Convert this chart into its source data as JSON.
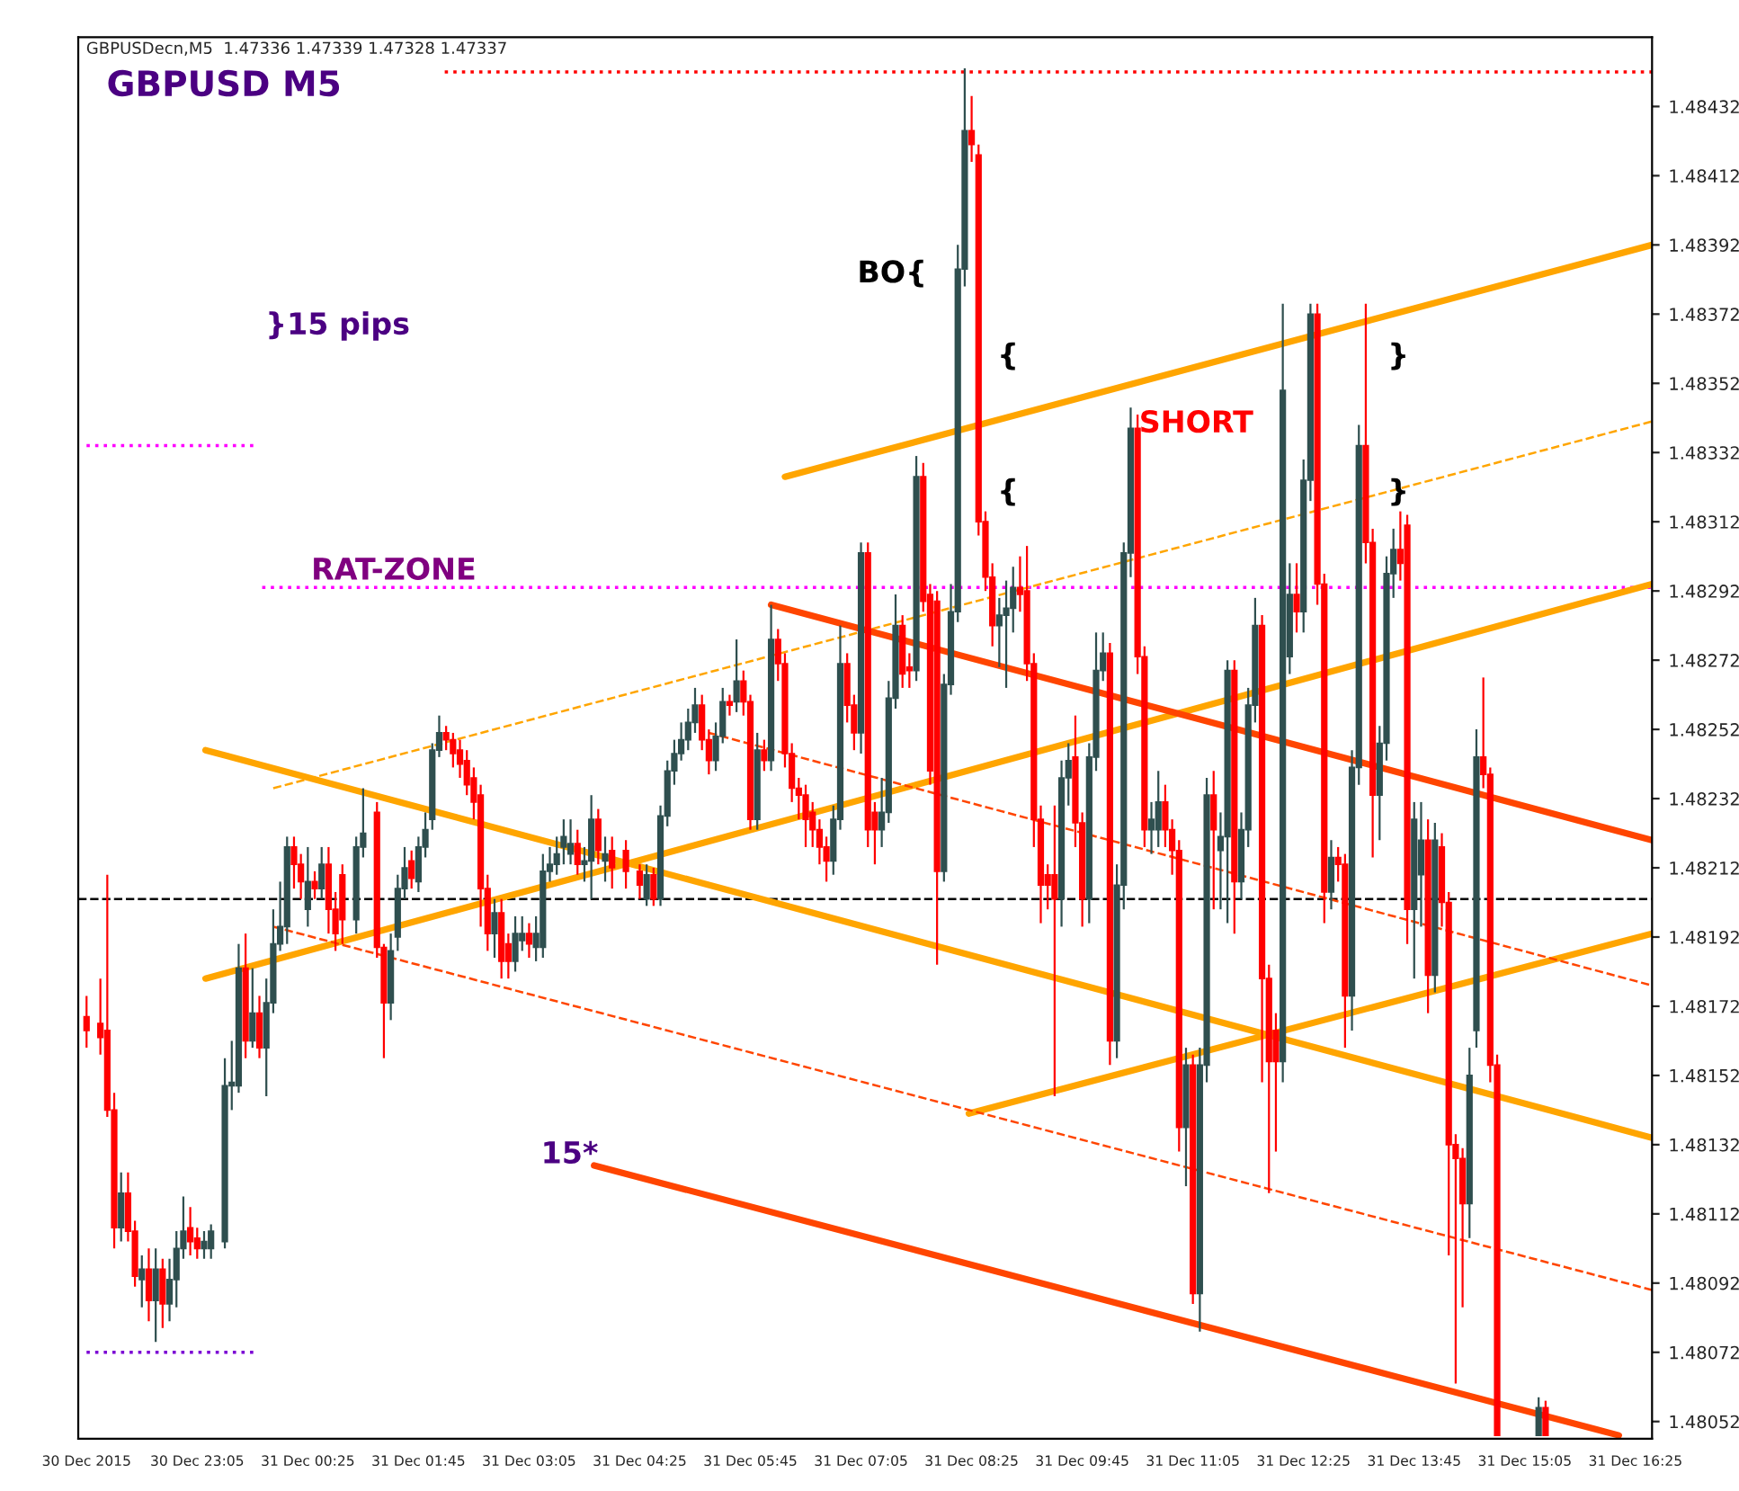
{
  "chart_data": {
    "type": "candlestick",
    "title": "GBPUSDecn,M5  1.47336 1.47339 1.47328 1.47337",
    "subtitle": "GBPUSD M5",
    "xlim": [
      "2015-12-30T21:39",
      "2015-12-31T16:37"
    ],
    "xticks": [
      {
        "value": "2015-12-30T21:45",
        "label": "30 Dec 2015"
      },
      {
        "value": "2015-12-30T23:05",
        "label": "30 Dec 23:05"
      },
      {
        "value": "2015-12-31T00:25",
        "label": "31 Dec 00:25"
      },
      {
        "value": "2015-12-31T01:45",
        "label": "31 Dec 01:45"
      },
      {
        "value": "2015-12-31T03:05",
        "label": "31 Dec 03:05"
      },
      {
        "value": "2015-12-31T04:25",
        "label": "31 Dec 04:25"
      },
      {
        "value": "2015-12-31T05:45",
        "label": "31 Dec 05:45"
      },
      {
        "value": "2015-12-31T07:05",
        "label": "31 Dec 07:05"
      },
      {
        "value": "2015-12-31T08:25",
        "label": "31 Dec 08:25"
      },
      {
        "value": "2015-12-31T09:45",
        "label": "31 Dec 09:45"
      },
      {
        "value": "2015-12-31T11:05",
        "label": "31 Dec 11:05"
      },
      {
        "value": "2015-12-31T12:25",
        "label": "31 Dec 12:25"
      },
      {
        "value": "2015-12-31T13:45",
        "label": "31 Dec 13:45"
      },
      {
        "value": "2015-12-31T15:05",
        "label": "31 Dec 15:05"
      },
      {
        "value": "2015-12-31T16:25",
        "label": "31 Dec 16:25"
      }
    ],
    "ylim": [
      1.48047,
      1.48452
    ],
    "yticks": [
      1.48052,
      1.48072,
      1.48092,
      1.48112,
      1.48132,
      1.48152,
      1.48172,
      1.48192,
      1.48212,
      1.48232,
      1.48252,
      1.48272,
      1.48292,
      1.48312,
      1.48332,
      1.48352,
      1.48372,
      1.48392,
      1.48412,
      1.48432
    ],
    "grid": false,
    "legend": false,
    "ref_lines": [
      {
        "axis": "y",
        "value": 1.48203,
        "color": "#000000",
        "line_style": "dashed"
      }
    ],
    "annotations": [
      "}15 pips",
      "RAT-ZONE",
      "BO{",
      "{",
      "{",
      "SHORT",
      "}",
      "}",
      "15*"
    ],
    "series": [
      {
        "type": "line",
        "color": "#ff0000",
        "line_style": "dotted",
        "x": [
          "2015-12-31T02:04",
          "2015-12-31T16:37"
        ],
        "values": [
          1.48442,
          1.48442
        ]
      },
      {
        "type": "line",
        "color": "#ff00ff",
        "line_style": "dotted",
        "x": [
          "2015-12-30T21:45",
          "2015-12-30T23:48"
        ],
        "values": [
          1.48334,
          1.48334
        ]
      },
      {
        "type": "line",
        "color": "#ff00ff",
        "line_style": "dotted",
        "x": [
          "2015-12-30T23:52",
          "2015-12-31T16:37"
        ],
        "values": [
          1.48293,
          1.48293
        ]
      },
      {
        "type": "line",
        "color": "#7b00d4",
        "line_style": "dotted",
        "x": [
          "2015-12-30T21:45",
          "2015-12-30T23:48"
        ],
        "values": [
          1.48072,
          1.48072
        ]
      },
      {
        "type": "line",
        "color": "#ffa500",
        "line_style": "solid",
        "x": [
          "2015-12-31T06:10",
          "2015-12-31T16:37"
        ],
        "values": [
          1.48325,
          1.48392
        ]
      },
      {
        "type": "line",
        "color": "#ffa500",
        "line_style": "solid",
        "x": [
          "2015-12-30T23:11",
          "2015-12-31T16:37"
        ],
        "values": [
          1.4818,
          1.48294
        ]
      },
      {
        "type": "line",
        "color": "#ffa500",
        "line_style": "solid",
        "x": [
          "2015-12-30T23:11",
          "2015-12-31T16:37"
        ],
        "values": [
          1.48246,
          1.48134
        ]
      },
      {
        "type": "line",
        "color": "#ffa500",
        "line_style": "solid",
        "x": [
          "2015-12-31T08:23",
          "2015-12-31T16:37"
        ],
        "values": [
          1.48141,
          1.48193
        ]
      },
      {
        "type": "line",
        "color": "#ffa500",
        "line_style": "dashed",
        "x": [
          "2015-12-31T00:00",
          "2015-12-31T16:37"
        ],
        "values": [
          1.48235,
          1.48341
        ]
      },
      {
        "type": "line",
        "color": "#ff4500",
        "line_style": "solid",
        "x": [
          "2015-12-31T06:00",
          "2015-12-31T16:37"
        ],
        "values": [
          1.48288,
          1.4822
        ]
      },
      {
        "type": "line",
        "color": "#ff4500",
        "line_style": "solid",
        "x": [
          "2015-12-31T03:52",
          "2015-12-31T16:13"
        ],
        "values": [
          1.48126,
          1.48048
        ]
      },
      {
        "type": "line",
        "color": "#ff4500",
        "line_style": "dashed",
        "x": [
          "2015-12-31T00:00",
          "2015-12-31T16:37"
        ],
        "values": [
          1.48195,
          1.4809
        ]
      },
      {
        "type": "line",
        "color": "#ff4500",
        "line_style": "dashed",
        "x": [
          "2015-12-31T05:15",
          "2015-12-31T16:37"
        ],
        "values": [
          1.48251,
          1.48178
        ]
      },
      {
        "color": "#2f4f4f",
        "x": [
          "2015-12-30T22:10",
          "2015-12-30T22:25",
          "2015-12-30T22:35",
          "2015-12-30T22:45",
          "2015-12-30T22:50",
          "2015-12-30T22:55",
          "2015-12-30T23:10",
          "2015-12-30T23:15",
          "2015-12-30T23:25",
          "2015-12-30T23:30",
          "2015-12-30T23:35",
          "2015-12-30T23:45",
          "2015-12-30T23:55",
          "2015-12-31T00:00",
          "2015-12-31T00:05",
          "2015-12-31T00:10",
          "2015-12-31T00:25",
          "2015-12-31T00:35",
          "2015-12-31T01:00",
          "2015-12-31T01:05",
          "2015-12-31T01:25",
          "2015-12-31T01:30",
          "2015-12-31T01:35",
          "2015-12-31T01:45",
          "2015-12-31T01:50",
          "2015-12-31T01:55",
          "2015-12-31T02:00",
          "2015-12-31T02:40",
          "2015-12-31T02:55",
          "2015-12-31T03:00",
          "2015-12-31T03:10",
          "2015-12-31T03:15",
          "2015-12-31T03:20",
          "2015-12-31T03:25",
          "2015-12-31T03:30",
          "2015-12-31T03:35",
          "2015-12-31T03:45",
          "2015-12-31T03:50",
          "2015-12-31T04:00",
          "2015-12-31T04:30",
          "2015-12-31T04:40",
          "2015-12-31T04:45",
          "2015-12-31T04:50",
          "2015-12-31T04:55",
          "2015-12-31T05:00",
          "2015-12-31T05:05",
          "2015-12-31T05:20",
          "2015-12-31T05:25",
          "2015-12-31T05:35",
          "2015-12-31T05:50",
          "2015-12-31T06:00",
          "2015-12-31T06:45",
          "2015-12-31T06:50",
          "2015-12-31T07:05",
          "2015-12-31T07:20",
          "2015-12-31T07:25",
          "2015-12-31T07:30",
          "2015-12-31T07:45",
          "2015-12-31T08:05",
          "2015-12-31T08:10",
          "2015-12-31T08:15",
          "2015-12-31T08:20",
          "2015-12-31T08:45",
          "2015-12-31T08:50",
          "2015-12-31T08:55",
          "2015-12-31T09:30",
          "2015-12-31T09:35",
          "2015-12-31T09:50",
          "2015-12-31T09:55",
          "2015-12-31T10:00",
          "2015-12-31T10:10",
          "2015-12-31T10:15",
          "2015-12-31T10:20",
          "2015-12-31T10:35",
          "2015-12-31T10:40",
          "2015-12-31T11:00",
          "2015-12-31T11:10",
          "2015-12-31T11:15",
          "2015-12-31T11:25",
          "2015-12-31T11:30",
          "2015-12-31T11:40",
          "2015-12-31T11:45",
          "2015-12-31T11:50",
          "2015-12-31T12:10",
          "2015-12-31T12:15",
          "2015-12-31T12:25",
          "2015-12-31T12:30",
          "2015-12-31T12:45",
          "2015-12-31T13:00",
          "2015-12-31T13:05",
          "2015-12-31T13:20",
          "2015-12-31T13:25",
          "2015-12-31T13:30",
          "2015-12-31T13:45",
          "2015-12-31T13:50",
          "2015-12-31T14:00",
          "2015-12-31T14:25",
          "2015-12-31T14:30",
          "2015-12-31T15:15"
        ],
        "ohlc": [
          [
            1.48108,
            1.48124,
            1.48104,
            1.48118
          ],
          [
            1.48093,
            1.481,
            1.48085,
            1.48096
          ],
          [
            1.48087,
            1.48102,
            1.48075,
            1.48096
          ],
          [
            1.48086,
            1.48099,
            1.48081,
            1.48093
          ],
          [
            1.48093,
            1.48107,
            1.48085,
            1.48102
          ],
          [
            1.48102,
            1.48117,
            1.48099,
            1.48107
          ],
          [
            1.48102,
            1.48107,
            1.48099,
            1.48104
          ],
          [
            1.48102,
            1.48109,
            1.48099,
            1.48107
          ],
          [
            1.48104,
            1.48157,
            1.48102,
            1.48149
          ],
          [
            1.48149,
            1.48162,
            1.48142,
            1.4815
          ],
          [
            1.48149,
            1.4819,
            1.48147,
            1.48183
          ],
          [
            1.48162,
            1.48183,
            1.4816,
            1.4817
          ],
          [
            1.4816,
            1.4818,
            1.48146,
            1.48173
          ],
          [
            1.48173,
            1.482,
            1.4817,
            1.4819
          ],
          [
            1.4819,
            1.48208,
            1.48188,
            1.48195
          ],
          [
            1.48195,
            1.48221,
            1.4819,
            1.48218
          ],
          [
            1.482,
            1.48218,
            1.48195,
            1.48208
          ],
          [
            1.48206,
            1.48218,
            1.48203,
            1.48213
          ],
          [
            1.48197,
            1.48221,
            1.48193,
            1.48218
          ],
          [
            1.48218,
            1.48235,
            1.48215,
            1.48222
          ],
          [
            1.48173,
            1.48193,
            1.48168,
            1.48188
          ],
          [
            1.48192,
            1.4821,
            1.48188,
            1.48206
          ],
          [
            1.48206,
            1.48218,
            1.48203,
            1.48212
          ],
          [
            1.48208,
            1.48221,
            1.48205,
            1.48218
          ],
          [
            1.48218,
            1.48228,
            1.48215,
            1.48223
          ],
          [
            1.48226,
            1.48248,
            1.48223,
            1.48246
          ],
          [
            1.48246,
            1.48256,
            1.48244,
            1.48251
          ],
          [
            1.48193,
            1.48203,
            1.48186,
            1.48199
          ],
          [
            1.48185,
            1.48198,
            1.48182,
            1.48193
          ],
          [
            1.48191,
            1.48198,
            1.48188,
            1.48193
          ],
          [
            1.48189,
            1.48198,
            1.48185,
            1.48193
          ],
          [
            1.48189,
            1.48216,
            1.48186,
            1.48211
          ],
          [
            1.48211,
            1.48218,
            1.48208,
            1.48213
          ],
          [
            1.48213,
            1.48221,
            1.4821,
            1.48216
          ],
          [
            1.48218,
            1.48226,
            1.48213,
            1.48221
          ],
          [
            1.48216,
            1.48226,
            1.48213,
            1.48219
          ],
          [
            1.48213,
            1.48218,
            1.48208,
            1.48214
          ],
          [
            1.48214,
            1.48233,
            1.48203,
            1.48226
          ],
          [
            1.48214,
            1.48221,
            1.48208,
            1.48216
          ],
          [
            1.48203,
            1.48213,
            1.48201,
            1.4821
          ],
          [
            1.48203,
            1.4823,
            1.48201,
            1.48227
          ],
          [
            1.48227,
            1.48243,
            1.48224,
            1.4824
          ],
          [
            1.4824,
            1.48249,
            1.48236,
            1.48245
          ],
          [
            1.48245,
            1.48254,
            1.48243,
            1.48249
          ],
          [
            1.48249,
            1.48258,
            1.48246,
            1.48254
          ],
          [
            1.48254,
            1.48264,
            1.48251,
            1.48259
          ],
          [
            1.48243,
            1.48254,
            1.4824,
            1.4825
          ],
          [
            1.4825,
            1.48264,
            1.48248,
            1.4826
          ],
          [
            1.4826,
            1.48278,
            1.48257,
            1.48266
          ],
          [
            1.48226,
            1.48251,
            1.48223,
            1.48246
          ],
          [
            1.48243,
            1.48288,
            1.4824,
            1.48278
          ],
          [
            1.48214,
            1.4823,
            1.4821,
            1.48226
          ],
          [
            1.48226,
            1.48282,
            1.48223,
            1.48271
          ],
          [
            1.48251,
            1.48306,
            1.48245,
            1.48303
          ],
          [
            1.48223,
            1.48238,
            1.48218,
            1.48228
          ],
          [
            1.48228,
            1.48266,
            1.48225,
            1.48261
          ],
          [
            1.48261,
            1.48291,
            1.48258,
            1.48282
          ],
          [
            1.48269,
            1.48331,
            1.48266,
            1.48325
          ],
          [
            1.48211,
            1.48268,
            1.48208,
            1.48265
          ],
          [
            1.48265,
            1.48294,
            1.48262,
            1.48286
          ],
          [
            1.48286,
            1.48392,
            1.48283,
            1.48385
          ],
          [
            1.48385,
            1.48443,
            1.4838,
            1.48425
          ],
          [
            1.48282,
            1.4829,
            1.4827,
            1.48285
          ],
          [
            1.48285,
            1.48295,
            1.48264,
            1.48287
          ],
          [
            1.48287,
            1.48299,
            1.4828,
            1.48293
          ],
          [
            1.48203,
            1.48243,
            1.48195,
            1.48238
          ],
          [
            1.48238,
            1.48248,
            1.4823,
            1.48243
          ],
          [
            1.48203,
            1.48248,
            1.48196,
            1.48244
          ],
          [
            1.48244,
            1.4828,
            1.4824,
            1.48269
          ],
          [
            1.48269,
            1.4828,
            1.48266,
            1.48274
          ],
          [
            1.48162,
            1.48213,
            1.48157,
            1.48207
          ],
          [
            1.48207,
            1.48306,
            1.482,
            1.48303
          ],
          [
            1.48303,
            1.48345,
            1.48296,
            1.48339
          ],
          [
            1.48223,
            1.48231,
            1.48216,
            1.48226
          ],
          [
            1.48223,
            1.4824,
            1.48218,
            1.48231
          ],
          [
            1.48137,
            1.4816,
            1.4812,
            1.48155
          ],
          [
            1.48089,
            1.4816,
            1.48078,
            1.48155
          ],
          [
            1.48155,
            1.48238,
            1.4815,
            1.48233
          ],
          [
            1.48217,
            1.48228,
            1.482,
            1.48221
          ],
          [
            1.48221,
            1.48272,
            1.48196,
            1.48269
          ],
          [
            1.48208,
            1.48228,
            1.48203,
            1.48223
          ],
          [
            1.48223,
            1.48264,
            1.48218,
            1.48259
          ],
          [
            1.48259,
            1.4829,
            1.48254,
            1.48282
          ],
          [
            1.48156,
            1.48375,
            1.4815,
            1.4835
          ],
          [
            1.48273,
            1.483,
            1.48268,
            1.48291
          ],
          [
            1.48286,
            1.4833,
            1.4828,
            1.48324
          ],
          [
            1.48324,
            1.48375,
            1.48318,
            1.48372
          ],
          [
            1.48205,
            1.4822,
            1.482,
            1.48215
          ],
          [
            1.48175,
            1.48246,
            1.48165,
            1.48241
          ],
          [
            1.48241,
            1.4834,
            1.48236,
            1.48334
          ],
          [
            1.48233,
            1.48253,
            1.4822,
            1.48248
          ],
          [
            1.48248,
            1.48302,
            1.48243,
            1.48297
          ],
          [
            1.48297,
            1.4831,
            1.4829,
            1.48304
          ],
          [
            1.482,
            1.48231,
            1.4818,
            1.48226
          ],
          [
            1.4821,
            1.48231,
            1.48195,
            1.4822
          ],
          [
            1.48181,
            1.48225,
            1.48176,
            1.4822
          ],
          [
            1.48115,
            1.4816,
            1.48105,
            1.48152
          ],
          [
            1.48165,
            1.48252,
            1.4816,
            1.48244
          ],
          [
            1.48048,
            1.48059,
            1.48048,
            1.48056
          ]
        ]
      },
      {
        "color": "#ff0000",
        "x": [
          "2015-12-30T21:45",
          "2015-12-30T21:55",
          "2015-12-30T22:00",
          "2015-12-30T22:05",
          "2015-12-30T22:15",
          "2015-12-30T22:20",
          "2015-12-30T22:30",
          "2015-12-30T22:40",
          "2015-12-30T23:00",
          "2015-12-30T23:05",
          "2015-12-30T23:40",
          "2015-12-30T23:50",
          "2015-12-31T00:15",
          "2015-12-31T00:20",
          "2015-12-31T00:30",
          "2015-12-31T00:40",
          "2015-12-31T00:45",
          "2015-12-31T00:50",
          "2015-12-31T01:15",
          "2015-12-31T01:20",
          "2015-12-31T01:40",
          "2015-12-31T02:05",
          "2015-12-31T02:10",
          "2015-12-31T02:15",
          "2015-12-31T02:20",
          "2015-12-31T02:25",
          "2015-12-31T02:30",
          "2015-12-31T02:35",
          "2015-12-31T02:45",
          "2015-12-31T02:50",
          "2015-12-31T03:05",
          "2015-12-31T03:40",
          "2015-12-31T03:55",
          "2015-12-31T04:05",
          "2015-12-31T04:15",
          "2015-12-31T04:25",
          "2015-12-31T04:35",
          "2015-12-31T05:10",
          "2015-12-31T05:15",
          "2015-12-31T05:30",
          "2015-12-31T05:40",
          "2015-12-31T05:45",
          "2015-12-31T05:55",
          "2015-12-31T06:05",
          "2015-12-31T06:10",
          "2015-12-31T06:15",
          "2015-12-31T06:20",
          "2015-12-31T06:25",
          "2015-12-31T06:30",
          "2015-12-31T06:35",
          "2015-12-31T06:40",
          "2015-12-31T06:55",
          "2015-12-31T07:00",
          "2015-12-31T07:10",
          "2015-12-31T07:15",
          "2015-12-31T07:35",
          "2015-12-31T07:40",
          "2015-12-31T07:50",
          "2015-12-31T07:55",
          "2015-12-31T08:00",
          "2015-12-31T08:25",
          "2015-12-31T08:30",
          "2015-12-31T08:35",
          "2015-12-31T08:40",
          "2015-12-31T09:00",
          "2015-12-31T09:05",
          "2015-12-31T09:10",
          "2015-12-31T09:15",
          "2015-12-31T09:20",
          "2015-12-31T09:25",
          "2015-12-31T09:40",
          "2015-12-31T09:45",
          "2015-12-31T10:05",
          "2015-12-31T10:25",
          "2015-12-31T10:30",
          "2015-12-31T10:45",
          "2015-12-31T10:50",
          "2015-12-31T10:55",
          "2015-12-31T11:05",
          "2015-12-31T11:20",
          "2015-12-31T11:35",
          "2015-12-31T11:55",
          "2015-12-31T12:00",
          "2015-12-31T12:05",
          "2015-12-31T12:20",
          "2015-12-31T12:35",
          "2015-12-31T12:40",
          "2015-12-31T12:50",
          "2015-12-31T12:55",
          "2015-12-31T13:10",
          "2015-12-31T13:15",
          "2015-12-31T13:35",
          "2015-12-31T13:40",
          "2015-12-31T13:55",
          "2015-12-31T14:05",
          "2015-12-31T14:10",
          "2015-12-31T14:15",
          "2015-12-31T14:20",
          "2015-12-31T14:35",
          "2015-12-31T14:40",
          "2015-12-31T14:45",
          "2015-12-31T15:20"
        ],
        "ohlc": [
          [
            1.48169,
            1.48175,
            1.4816,
            1.48165
          ],
          [
            1.48167,
            1.4818,
            1.48158,
            1.48163
          ],
          [
            1.48165,
            1.4821,
            1.4814,
            1.48142
          ],
          [
            1.48142,
            1.48147,
            1.48102,
            1.48108
          ],
          [
            1.48118,
            1.48124,
            1.48104,
            1.48107
          ],
          [
            1.48107,
            1.4811,
            1.48091,
            1.48094
          ],
          [
            1.48096,
            1.48102,
            1.48081,
            1.48087
          ],
          [
            1.48096,
            1.48099,
            1.48079,
            1.48086
          ],
          [
            1.48108,
            1.48114,
            1.481,
            1.48104
          ],
          [
            1.48105,
            1.48108,
            1.48099,
            1.48102
          ],
          [
            1.48183,
            1.48193,
            1.48157,
            1.48162
          ],
          [
            1.4817,
            1.48175,
            1.48157,
            1.4816
          ],
          [
            1.48218,
            1.48221,
            1.48206,
            1.48213
          ],
          [
            1.48213,
            1.48216,
            1.48203,
            1.48208
          ],
          [
            1.48208,
            1.48211,
            1.48203,
            1.48206
          ],
          [
            1.48213,
            1.48218,
            1.48193,
            1.482
          ],
          [
            1.482,
            1.48205,
            1.48188,
            1.48193
          ],
          [
            1.4821,
            1.48213,
            1.4819,
            1.48197
          ],
          [
            1.48228,
            1.48231,
            1.48186,
            1.48189
          ],
          [
            1.48189,
            1.4819,
            1.48157,
            1.48173
          ],
          [
            1.48214,
            1.48217,
            1.48206,
            1.48209
          ],
          [
            1.48251,
            1.48253,
            1.48246,
            1.48249
          ],
          [
            1.48249,
            1.48251,
            1.48241,
            1.48245
          ],
          [
            1.48246,
            1.48249,
            1.48238,
            1.48242
          ],
          [
            1.48243,
            1.48246,
            1.48233,
            1.48236
          ],
          [
            1.48238,
            1.48241,
            1.48226,
            1.48231
          ],
          [
            1.48233,
            1.48236,
            1.48195,
            1.48206
          ],
          [
            1.48206,
            1.4821,
            1.48188,
            1.48193
          ],
          [
            1.48199,
            1.48203,
            1.4818,
            1.48185
          ],
          [
            1.4819,
            1.48193,
            1.4818,
            1.48185
          ],
          [
            1.48193,
            1.48196,
            1.48186,
            1.4819
          ],
          [
            1.48219,
            1.48223,
            1.4821,
            1.48213
          ],
          [
            1.48226,
            1.48229,
            1.48213,
            1.48217
          ],
          [
            1.48217,
            1.48221,
            1.48206,
            1.48212
          ],
          [
            1.48217,
            1.4822,
            1.48206,
            1.48211
          ],
          [
            1.48211,
            1.48213,
            1.48203,
            1.48207
          ],
          [
            1.4821,
            1.48212,
            1.48201,
            1.48203
          ],
          [
            1.48259,
            1.48262,
            1.48246,
            1.48249
          ],
          [
            1.48249,
            1.48252,
            1.48239,
            1.48243
          ],
          [
            1.4826,
            1.48262,
            1.48256,
            1.48259
          ],
          [
            1.48266,
            1.48269,
            1.48256,
            1.4826
          ],
          [
            1.4826,
            1.48262,
            1.48223,
            1.48226
          ],
          [
            1.48246,
            1.48249,
            1.4824,
            1.48243
          ],
          [
            1.48278,
            1.48281,
            1.48266,
            1.48271
          ],
          [
            1.48271,
            1.48274,
            1.48241,
            1.48245
          ],
          [
            1.48245,
            1.48248,
            1.48231,
            1.48235
          ],
          [
            1.48235,
            1.48238,
            1.48226,
            1.48233
          ],
          [
            1.48233,
            1.48236,
            1.48218,
            1.48226
          ],
          [
            1.48228,
            1.48231,
            1.48218,
            1.48223
          ],
          [
            1.48223,
            1.48226,
            1.48213,
            1.48218
          ],
          [
            1.48218,
            1.48221,
            1.48208,
            1.48214
          ],
          [
            1.48271,
            1.48274,
            1.48254,
            1.48259
          ],
          [
            1.48259,
            1.48262,
            1.48246,
            1.48251
          ],
          [
            1.48303,
            1.48306,
            1.48218,
            1.48223
          ],
          [
            1.48228,
            1.48231,
            1.48213,
            1.48223
          ],
          [
            1.48282,
            1.48285,
            1.48264,
            1.48268
          ],
          [
            1.4827,
            1.48274,
            1.48264,
            1.48269
          ],
          [
            1.48325,
            1.48329,
            1.48286,
            1.48289
          ],
          [
            1.48291,
            1.48294,
            1.48236,
            1.4824
          ],
          [
            1.48289,
            1.48292,
            1.48184,
            1.48211
          ],
          [
            1.48425,
            1.48435,
            1.48416,
            1.48421
          ],
          [
            1.48418,
            1.48421,
            1.48308,
            1.48312
          ],
          [
            1.48312,
            1.48315,
            1.48292,
            1.48296
          ],
          [
            1.48296,
            1.483,
            1.48276,
            1.48282
          ],
          [
            1.48293,
            1.48302,
            1.48286,
            1.48291
          ],
          [
            1.48292,
            1.48305,
            1.48266,
            1.48271
          ],
          [
            1.48271,
            1.48274,
            1.48218,
            1.48226
          ],
          [
            1.48226,
            1.4823,
            1.48196,
            1.48207
          ],
          [
            1.4821,
            1.48213,
            1.482,
            1.48207
          ],
          [
            1.4821,
            1.4823,
            1.48146,
            1.48203
          ],
          [
            1.48244,
            1.48256,
            1.48218,
            1.48225
          ],
          [
            1.48225,
            1.48228,
            1.48195,
            1.48203
          ],
          [
            1.48274,
            1.48277,
            1.48155,
            1.48162
          ],
          [
            1.48339,
            1.48343,
            1.48268,
            1.48273
          ],
          [
            1.48273,
            1.48276,
            1.48218,
            1.48223
          ],
          [
            1.48231,
            1.48236,
            1.48218,
            1.48223
          ],
          [
            1.48223,
            1.48226,
            1.4821,
            1.48217
          ],
          [
            1.48217,
            1.4822,
            1.4813,
            1.48137
          ],
          [
            1.48155,
            1.48158,
            1.48086,
            1.48089
          ],
          [
            1.48233,
            1.4824,
            1.482,
            1.48223
          ],
          [
            1.48269,
            1.48272,
            1.48193,
            1.48208
          ],
          [
            1.48282,
            1.48285,
            1.4815,
            1.4818
          ],
          [
            1.4818,
            1.48184,
            1.48118,
            1.48156
          ],
          [
            1.48165,
            1.4817,
            1.4813,
            1.48156
          ],
          [
            1.48291,
            1.483,
            1.4828,
            1.48286
          ],
          [
            1.48372,
            1.48375,
            1.48288,
            1.48294
          ],
          [
            1.48294,
            1.48297,
            1.48196,
            1.48205
          ],
          [
            1.48215,
            1.48218,
            1.48208,
            1.48213
          ],
          [
            1.48213,
            1.48216,
            1.4816,
            1.48175
          ],
          [
            1.48334,
            1.48375,
            1.483,
            1.48306
          ],
          [
            1.48306,
            1.4831,
            1.48215,
            1.48233
          ],
          [
            1.48304,
            1.48315,
            1.48295,
            1.483
          ],
          [
            1.48311,
            1.48314,
            1.4819,
            1.482
          ],
          [
            1.4822,
            1.48226,
            1.4817,
            1.48181
          ],
          [
            1.48218,
            1.48222,
            1.48195,
            1.48202
          ],
          [
            1.48202,
            1.48205,
            1.481,
            1.48132
          ],
          [
            1.48132,
            1.48135,
            1.48063,
            1.48128
          ],
          [
            1.48128,
            1.48131,
            1.48085,
            1.48115
          ],
          [
            1.48244,
            1.48267,
            1.48235,
            1.48239
          ],
          [
            1.48239,
            1.48241,
            1.4815,
            1.48155
          ],
          [
            1.48155,
            1.48158,
            1.48048,
            1.48048
          ],
          [
            1.48056,
            1.48058,
            1.48048,
            1.48048
          ]
        ]
      }
    ]
  }
}
